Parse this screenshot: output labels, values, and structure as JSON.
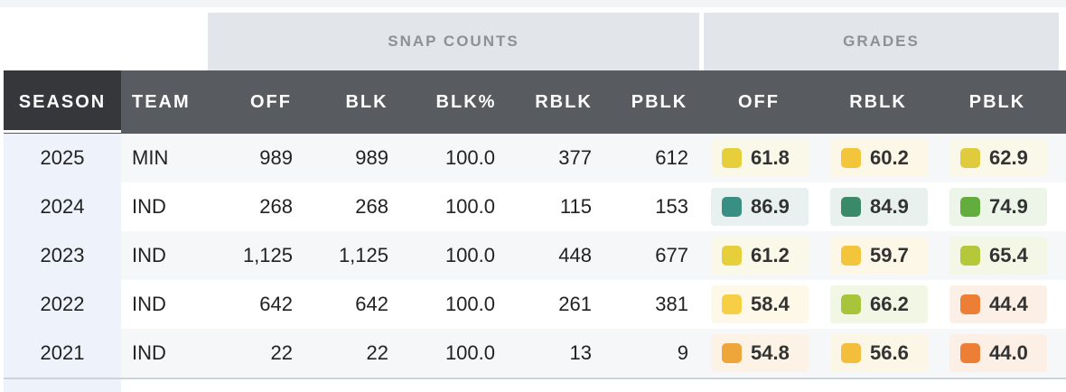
{
  "group_headers": {
    "snap_counts": "SNAP COUNTS",
    "grades": "GRADES"
  },
  "columns": [
    "SEASON",
    "TEAM",
    "OFF",
    "BLK",
    "BLK%",
    "RBLK",
    "PBLK",
    "OFF",
    "RBLK",
    "PBLK"
  ],
  "grade_colors": {
    "teal": "#3a8f84",
    "darkgreen": "#3a8a6a",
    "green": "#62ad3e",
    "yellowgreen": "#b5c83a",
    "yellow": "#e6cf3a",
    "gold": "#f3c53b",
    "lightgold": "#f7cf45",
    "orange": "#eea63a",
    "darkorange": "#ec7e35"
  },
  "rows": [
    {
      "season": "2025",
      "team": "MIN",
      "off": "989",
      "blk": "989",
      "blk_pct": "100.0",
      "rblk": "377",
      "pblk": "612",
      "grades": [
        {
          "value": "61.8",
          "color": "#e6cf3a",
          "bg": "#faf8e9"
        },
        {
          "value": "60.2",
          "color": "#f3c53b",
          "bg": "#fcf7e6"
        },
        {
          "value": "62.9",
          "color": "#e0cb3e",
          "bg": "#f9f8e9"
        }
      ]
    },
    {
      "season": "2024",
      "team": "IND",
      "off": "268",
      "blk": "268",
      "blk_pct": "100.0",
      "rblk": "115",
      "pblk": "153",
      "grades": [
        {
          "value": "86.9",
          "color": "#3a8f84",
          "bg": "#e8f1ef"
        },
        {
          "value": "84.9",
          "color": "#3a8a6a",
          "bg": "#e8f1ed"
        },
        {
          "value": "74.9",
          "color": "#62ad3e",
          "bg": "#edf5e8"
        }
      ]
    },
    {
      "season": "2023",
      "team": "IND",
      "off": "1,125",
      "blk": "1,125",
      "blk_pct": "100.0",
      "rblk": "448",
      "pblk": "677",
      "grades": [
        {
          "value": "61.2",
          "color": "#e6cf3a",
          "bg": "#faf8e9"
        },
        {
          "value": "59.7",
          "color": "#f3c53b",
          "bg": "#fcf7e6"
        },
        {
          "value": "65.4",
          "color": "#b5c83a",
          "bg": "#f4f7e6"
        }
      ]
    },
    {
      "season": "2022",
      "team": "IND",
      "off": "642",
      "blk": "642",
      "blk_pct": "100.0",
      "rblk": "261",
      "pblk": "381",
      "grades": [
        {
          "value": "58.4",
          "color": "#f7cf45",
          "bg": "#fdf8e8"
        },
        {
          "value": "66.2",
          "color": "#a8c43a",
          "bg": "#f2f6e5"
        },
        {
          "value": "44.4",
          "color": "#ec7e35",
          "bg": "#fcefe6"
        }
      ]
    },
    {
      "season": "2021",
      "team": "IND",
      "off": "22",
      "blk": "22",
      "blk_pct": "100.0",
      "rblk": "13",
      "pblk": "9",
      "grades": [
        {
          "value": "54.8",
          "color": "#eea63a",
          "bg": "#fcf3e6"
        },
        {
          "value": "56.6",
          "color": "#f2be3b",
          "bg": "#fcf6e6"
        },
        {
          "value": "44.0",
          "color": "#ec7e35",
          "bg": "#fcefe6"
        }
      ]
    }
  ]
}
